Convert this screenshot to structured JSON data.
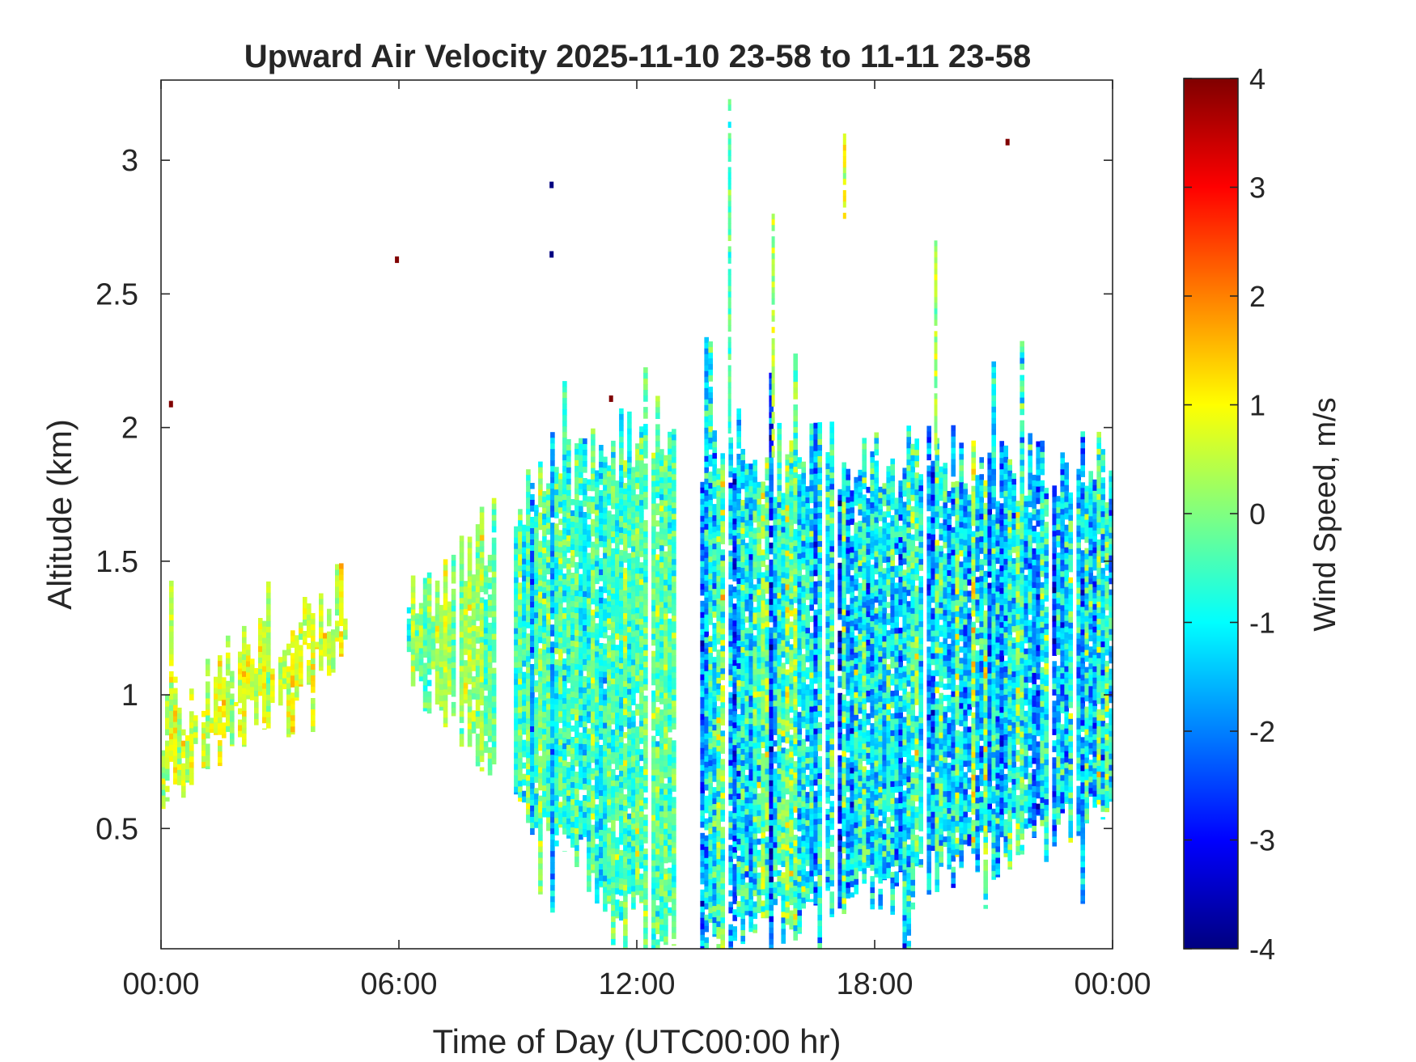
{
  "chart_data": {
    "type": "heatmap",
    "title": "Upward Air Velocity 2025-11-10 23-58 to 11-11 23-58",
    "xlabel": "Time of Day (UTC00:00 hr)",
    "ylabel": "Altitude (km)",
    "x_range_hours": [
      0,
      24
    ],
    "x_ticks_hours": [
      0,
      6,
      12,
      18,
      24
    ],
    "x_tick_labels": [
      "00:00",
      "06:00",
      "12:00",
      "18:00",
      "00:00"
    ],
    "ylim": [
      0.05,
      3.3
    ],
    "y_ticks": [
      0.5,
      1,
      1.5,
      2,
      2.5,
      3
    ],
    "y_tick_labels": [
      "0.5",
      "1",
      "1.5",
      "2",
      "2.5",
      "3"
    ],
    "colorbar": {
      "label": "Wind Speed, m/s",
      "range": [
        -4,
        4
      ],
      "ticks": [
        -4,
        -3,
        -2,
        -1,
        0,
        1,
        2,
        3,
        4
      ],
      "tick_labels": [
        "-4",
        "-3",
        "-2",
        "-1",
        "0",
        "1",
        "2",
        "3",
        "4"
      ],
      "colormap": "jet"
    },
    "grid": false,
    "background": "#ffffff",
    "echo_segments": [
      {
        "t_start": 0.0,
        "t_end": 4.6,
        "bottom_km": [
          0.62,
          1.22
        ],
        "top_km": [
          0.92,
          1.38
        ],
        "mean_ms": 0.6,
        "spread_ms": 0.8
      },
      {
        "t_start": 6.2,
        "t_end": 8.4,
        "bottom_km": [
          1.1,
          0.75
        ],
        "top_km": [
          1.3,
          1.62
        ],
        "mean_ms": 0.1,
        "spread_ms": 0.9
      },
      {
        "t_start": 8.9,
        "t_end": 12.9,
        "bottom_km": [
          0.6,
          0.05
        ],
        "top_km": [
          1.75,
          2.05
        ],
        "mean_ms": -0.6,
        "spread_ms": 1.2
      },
      {
        "t_start": 13.6,
        "t_end": 24.0,
        "bottom_km": [
          0.05,
          0.55
        ],
        "top_km": [
          1.9,
          1.85
        ],
        "mean_ms": -1.1,
        "spread_ms": 1.7
      }
    ],
    "isolated_points": [
      {
        "t": 0.2,
        "alt_km": 2.1,
        "value_ms": 4
      },
      {
        "t": 5.9,
        "alt_km": 2.64,
        "value_ms": 4
      },
      {
        "t": 9.8,
        "alt_km": 2.92,
        "value_ms": -4
      },
      {
        "t": 9.8,
        "alt_km": 2.66,
        "value_ms": -4
      },
      {
        "t": 11.3,
        "alt_km": 2.12,
        "value_ms": 4
      },
      {
        "t": 21.3,
        "alt_km": 3.08,
        "value_ms": 4
      }
    ],
    "tall_streaks": [
      {
        "t": 14.3,
        "bottom_km": 2.0,
        "top_km": 3.25,
        "value_ms": -0.5
      },
      {
        "t": 15.4,
        "bottom_km": 1.9,
        "top_km": 2.8,
        "value_ms": 0.3
      },
      {
        "t": 17.2,
        "bottom_km": 2.8,
        "top_km": 3.1,
        "value_ms": 0.8
      },
      {
        "t": 19.5,
        "bottom_km": 1.9,
        "top_km": 2.7,
        "value_ms": 0.4
      }
    ]
  }
}
